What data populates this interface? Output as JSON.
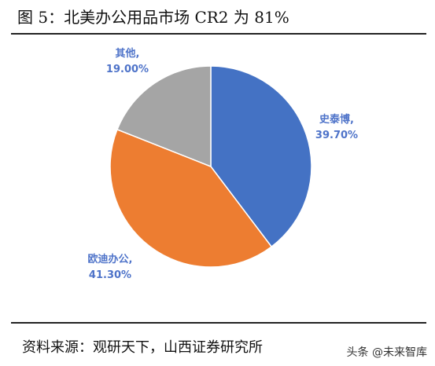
{
  "title": "图 5：北美办公用品市场 CR2 为 81%",
  "source": "资料来源：观研天下，山西证券研究所",
  "watermark": "头条 @未来智库",
  "chart_data": {
    "type": "pie",
    "slices": [
      {
        "name": "史泰博,",
        "value": 39.7,
        "label": "39.70%",
        "color": "#4472C4"
      },
      {
        "name": "欧迪办公,",
        "value": 41.3,
        "label": "41.30%",
        "color": "#ED7D31"
      },
      {
        "name": "其他,",
        "value": 19.0,
        "label": "19.00%",
        "color": "#A5A5A5"
      }
    ],
    "start_angle": "12 o'clock",
    "direction": "clockwise",
    "label_color": "#4E73C9"
  }
}
